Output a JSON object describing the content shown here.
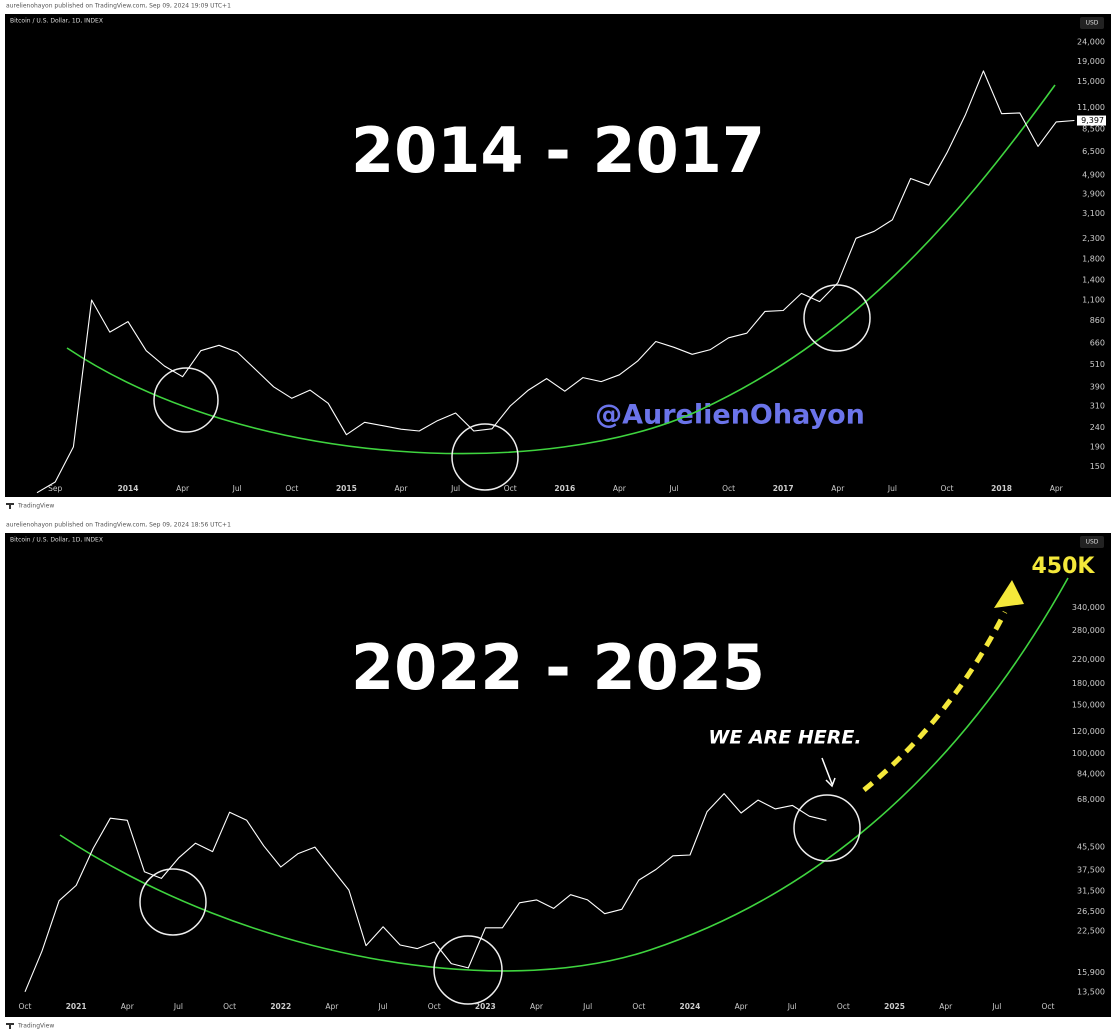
{
  "chart_data": [
    {
      "type": "line",
      "header": "aurelienohayon published on TradingView.com, Sep 09, 2024 19:09 UTC+1",
      "symbol": "Bitcoin / U.S. Dollar, 1D, INDEX",
      "currency": "USD",
      "title": "2014 - 2017",
      "watermark": "@AurelienOhayon",
      "footer": "TradingView",
      "log_scale": true,
      "color": "#ffffff",
      "categories": [
        null,
        "Sep",
        null,
        null,
        null,
        "2014",
        null,
        null,
        "Apr",
        null,
        null,
        "Jul",
        null,
        null,
        "Oct",
        null,
        null,
        "2015",
        null,
        null,
        "Apr",
        null,
        null,
        "Jul",
        null,
        null,
        "Oct",
        null,
        null,
        "2016",
        null,
        null,
        "Apr",
        null,
        null,
        "Jul",
        null,
        null,
        "Oct",
        null,
        null,
        "2017",
        null,
        null,
        "Apr",
        null,
        null,
        "Jul",
        null,
        null,
        "Oct",
        null,
        null,
        "2018",
        null,
        null,
        "Apr",
        null
      ],
      "values": [
        110,
        125,
        190,
        1100,
        750,
        850,
        600,
        500,
        440,
        600,
        640,
        590,
        480,
        390,
        340,
        375,
        320,
        220,
        255,
        245,
        235,
        230,
        260,
        285,
        230,
        236,
        310,
        375,
        430,
        370,
        435,
        415,
        450,
        530,
        670,
        625,
        575,
        608,
        700,
        740,
        960,
        970,
        1190,
        1080,
        1350,
        2300,
        2500,
        2870,
        4700,
        4340,
        6400,
        10000,
        17000,
        10200,
        10300,
        6900,
        9240,
        9397
      ],
      "ylim": [
        128,
        32000
      ],
      "yticks": [
        {
          "value": 24000,
          "label": "24,000"
        },
        {
          "value": 19000,
          "label": "19,000"
        },
        {
          "value": 15000,
          "label": "15,000"
        },
        {
          "value": 11000,
          "label": "11,000"
        },
        {
          "value": 8500,
          "label": "8,500"
        },
        {
          "value": 6500,
          "label": "6,500"
        },
        {
          "value": 4900,
          "label": "4,900"
        },
        {
          "value": 3900,
          "label": "3,900"
        },
        {
          "value": 3100,
          "label": "3,100"
        },
        {
          "value": 2300,
          "label": "2,300"
        },
        {
          "value": 1800,
          "label": "1,800"
        },
        {
          "value": 1400,
          "label": "1,400"
        },
        {
          "value": 1100,
          "label": "1,100"
        },
        860,
        660,
        510,
        390,
        310,
        240,
        190,
        150
      ],
      "price_label": {
        "value": 9397,
        "label": "9,397"
      }
    },
    {
      "type": "line",
      "header": "aurelienohayon published on TradingView.com, Sep 09, 2024 18:56 UTC+1",
      "symbol": "Bitcoin / U.S. Dollar, 1D, INDEX",
      "currency": "USD",
      "title": "2022 - 2025",
      "annotations": [
        "WE ARE HERE.",
        "450K"
      ],
      "footer": "TradingView",
      "log_scale": true,
      "color": "#ffffff",
      "categories": [
        "Oct",
        null,
        null,
        "2021",
        null,
        null,
        "Apr",
        null,
        null,
        "Jul",
        null,
        null,
        "Oct",
        null,
        null,
        "2022",
        null,
        null,
        "Apr",
        null,
        null,
        "Jul",
        null,
        null,
        "Oct",
        null,
        null,
        "2023",
        null,
        null,
        "Apr",
        null,
        null,
        "Jul",
        null,
        null,
        "Oct",
        null,
        null,
        "2024",
        null,
        null,
        "Apr",
        null,
        null,
        "Jul",
        null,
        null,
        "Oct",
        null,
        null,
        "2025",
        null,
        null,
        "Apr",
        null,
        null,
        "Jul",
        null,
        null,
        "Oct",
        null
      ],
      "values": [
        13500,
        19000,
        29000,
        33000,
        45000,
        58000,
        57000,
        37000,
        35000,
        41500,
        47000,
        43800,
        61000,
        57000,
        46000,
        38500,
        43000,
        45500,
        38000,
        31700,
        19900,
        23300,
        20000,
        19400,
        20500,
        17100,
        16500,
        23100,
        23100,
        28500,
        29200,
        27200,
        30500,
        29200,
        26000,
        27000,
        34500,
        37700,
        42300,
        42600,
        61200,
        71300,
        60600,
        67500,
        62700,
        64600,
        59000,
        57000,
        null,
        null,
        null,
        null,
        null,
        null,
        null,
        null,
        null,
        null,
        null,
        null,
        null,
        null
      ],
      "ylim": [
        12600,
        600000
      ],
      "yticks": [
        {
          "value": 340000,
          "label": "340,000"
        },
        {
          "value": 280000,
          "label": "280,000"
        },
        {
          "value": 220000,
          "label": "220,000"
        },
        {
          "value": 180000,
          "label": "180,000"
        },
        {
          "value": 150000,
          "label": "150,000"
        },
        {
          "value": 120000,
          "label": "120,000"
        },
        {
          "value": 100000,
          "label": "100,000"
        },
        {
          "value": 84000,
          "label": "84,000"
        },
        {
          "value": 68000,
          "label": "68,000"
        },
        {
          "value": 45500,
          "label": "45,500"
        },
        {
          "value": 37500,
          "label": "37,500"
        },
        {
          "value": 31500,
          "label": "31,500"
        },
        {
          "value": 26500,
          "label": "26,500"
        },
        {
          "value": 22500,
          "label": "22,500"
        },
        {
          "value": 15900,
          "label": "15,900"
        },
        {
          "value": 13500,
          "label": "13,500"
        }
      ]
    }
  ]
}
